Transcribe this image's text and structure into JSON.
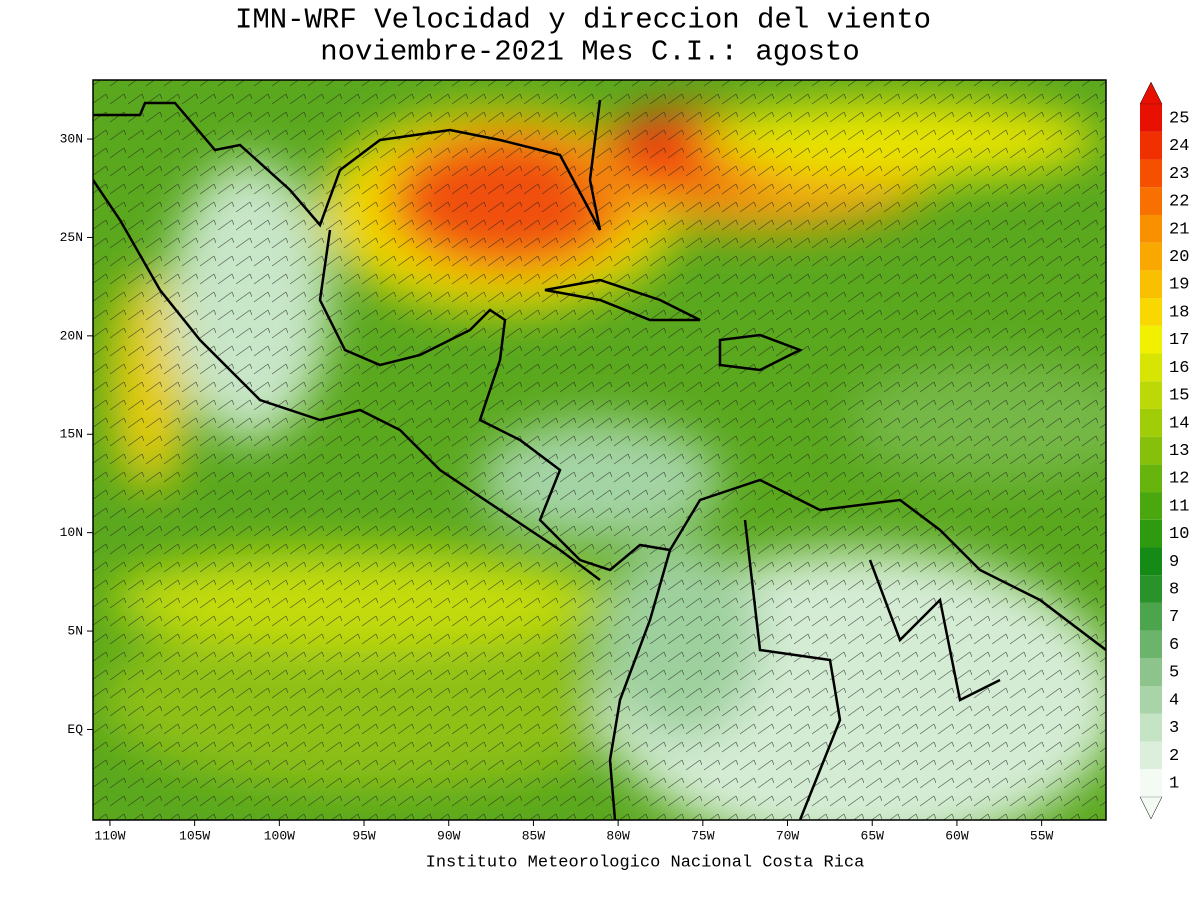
{
  "title": "IMN-WRF Velocidad y direccion del viento",
  "subtitle": "noviembre-2021 Mes C.I.: agosto",
  "footer": "Instituto Meteorologico Nacional Costa Rica",
  "map": {
    "xlim": [
      -111,
      -51.2
    ],
    "ylim": [
      -4.6,
      33
    ],
    "xticks": [
      {
        "value": -110,
        "label": "110W"
      },
      {
        "value": -105,
        "label": "105W"
      },
      {
        "value": -100,
        "label": "100W"
      },
      {
        "value": -95,
        "label": "95W"
      },
      {
        "value": -90,
        "label": "90W"
      },
      {
        "value": -85,
        "label": "85W"
      },
      {
        "value": -80,
        "label": "80W"
      },
      {
        "value": -75,
        "label": "75W"
      },
      {
        "value": -70,
        "label": "70W"
      },
      {
        "value": -65,
        "label": "65W"
      },
      {
        "value": -60,
        "label": "60W"
      },
      {
        "value": -55,
        "label": "55W"
      }
    ],
    "yticks": [
      {
        "value": 30,
        "label": "30N"
      },
      {
        "value": 25,
        "label": "25N"
      },
      {
        "value": 20,
        "label": "20N"
      },
      {
        "value": 15,
        "label": "15N"
      },
      {
        "value": 10,
        "label": "10N"
      },
      {
        "value": 5,
        "label": "5N"
      },
      {
        "value": 0,
        "label": "EQ"
      }
    ]
  },
  "colorbar": {
    "levels": [
      1,
      2,
      3,
      4,
      5,
      6,
      7,
      8,
      9,
      10,
      11,
      12,
      13,
      14,
      15,
      16,
      17,
      18,
      19,
      20,
      21,
      22,
      23,
      24,
      25
    ],
    "colors": [
      "#f4faf4",
      "#dcefdc",
      "#c4e4c4",
      "#a8d4a8",
      "#8cc48c",
      "#6cb46c",
      "#4ca44c",
      "#2a922a",
      "#168a16",
      "#2e9a10",
      "#4aa80e",
      "#66b40c",
      "#86c00a",
      "#a0cc08",
      "#bcd806",
      "#d8e404",
      "#f0f000",
      "#f8d800",
      "#f8c000",
      "#f8a800",
      "#f89000",
      "#f87000",
      "#f45000",
      "#f03000",
      "#e81000"
    ]
  }
}
